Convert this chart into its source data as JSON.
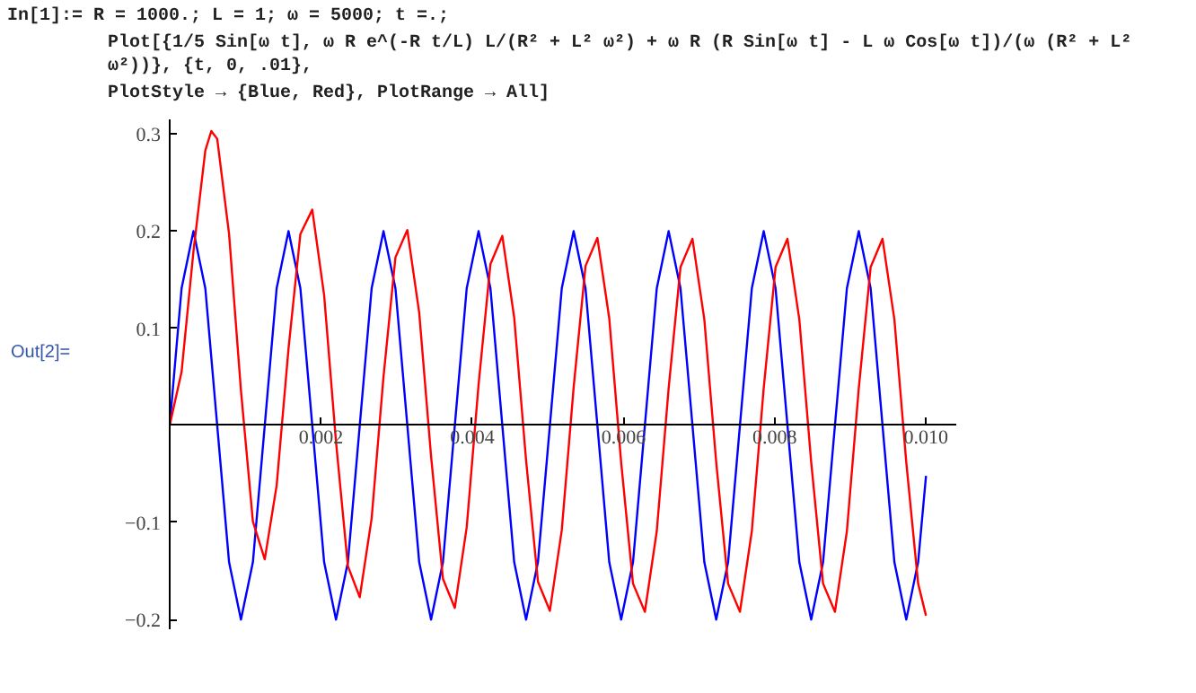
{
  "chart_data": {
    "type": "line",
    "annotations": [
      "In[1]:=  R = 1000.; L = 1; ω = 5000; t =.;",
      "Plot[{1/5 Sin[ω t], ω R e^(-R t/L) L/(R² + L² ω²) + ω R (R Sin[ω t] - L ω Cos[ω t])/(ω (R² + L² ω²))}, {t, 0, .01},",
      "PlotStyle → {Blue, Red}, PlotRange → All]",
      "Out[2]="
    ],
    "series": [
      {
        "color": "#0000ff",
        "x": [
          0,
          0.000157,
          0.000314,
          0.000471,
          0.000628,
          0.000785,
          0.000942,
          0.0011,
          0.001257,
          0.001414,
          0.001571,
          0.001728,
          0.001885,
          0.002042,
          0.002199,
          0.002356,
          0.002513,
          0.00267,
          0.002827,
          0.002985,
          0.003142,
          0.003299,
          0.003456,
          0.003613,
          0.00377,
          0.003927,
          0.004084,
          0.004241,
          0.004398,
          0.004555,
          0.004712,
          0.004869,
          0.005027,
          0.005184,
          0.005341,
          0.005498,
          0.005655,
          0.005812,
          0.005969,
          0.006126,
          0.006283,
          0.00644,
          0.006597,
          0.006754,
          0.006912,
          0.007069,
          0.007226,
          0.007383,
          0.00754,
          0.007697,
          0.007854,
          0.008011,
          0.008168,
          0.008325,
          0.008482,
          0.008639,
          0.008796,
          0.008954,
          0.009111,
          0.009268,
          0.009425,
          0.009582,
          0.009739,
          0.009896,
          0.01
        ],
        "values": [
          0,
          0.141,
          0.2,
          0.141,
          0,
          -0.141,
          -0.2,
          -0.141,
          0,
          0.141,
          0.2,
          0.141,
          0,
          -0.141,
          -0.2,
          -0.141,
          0,
          0.141,
          0.2,
          0.141,
          0,
          -0.141,
          -0.2,
          -0.141,
          0,
          0.141,
          0.2,
          0.141,
          0,
          -0.141,
          -0.2,
          -0.141,
          0,
          0.141,
          0.2,
          0.141,
          0,
          -0.141,
          -0.2,
          -0.141,
          0,
          0.141,
          0.2,
          0.141,
          0,
          -0.141,
          -0.2,
          -0.141,
          0,
          0.141,
          0.2,
          0.141,
          0,
          -0.141,
          -0.2,
          -0.141,
          0,
          0.141,
          0.2,
          0.141,
          0,
          -0.141,
          -0.2,
          -0.141,
          -0.052
        ]
      },
      {
        "color": "#ff0000",
        "x": [
          0,
          0.000157,
          0.000314,
          0.000471,
          0.00055,
          0.000628,
          0.000785,
          0.000942,
          0.0011,
          0.001257,
          0.001414,
          0.001571,
          0.001728,
          0.001885,
          0.002042,
          0.002199,
          0.002356,
          0.002513,
          0.00267,
          0.002827,
          0.002985,
          0.003142,
          0.003299,
          0.003456,
          0.003613,
          0.00377,
          0.003927,
          0.004084,
          0.004241,
          0.004398,
          0.004555,
          0.004712,
          0.004869,
          0.005027,
          0.005184,
          0.005341,
          0.005498,
          0.005655,
          0.005812,
          0.005969,
          0.006126,
          0.006283,
          0.00644,
          0.006597,
          0.006754,
          0.006912,
          0.007069,
          0.007226,
          0.007383,
          0.00754,
          0.007697,
          0.007854,
          0.008011,
          0.008168,
          0.008325,
          0.008482,
          0.008639,
          0.008796,
          0.008954,
          0.009111,
          0.009268,
          0.009425,
          0.009582,
          0.009739,
          0.009896,
          0.01
        ],
        "values": [
          0,
          0.055,
          0.179,
          0.283,
          0.303,
          0.295,
          0.197,
          0.036,
          -0.099,
          -0.138,
          -0.062,
          0.079,
          0.197,
          0.222,
          0.134,
          -0.017,
          -0.145,
          -0.177,
          -0.096,
          0.05,
          0.173,
          0.201,
          0.116,
          -0.032,
          -0.158,
          -0.188,
          -0.105,
          0.042,
          0.166,
          0.195,
          0.111,
          -0.036,
          -0.161,
          -0.191,
          -0.108,
          0.039,
          0.164,
          0.193,
          0.11,
          -0.038,
          -0.163,
          -0.192,
          -0.109,
          0.038,
          0.163,
          0.192,
          0.109,
          -0.038,
          -0.163,
          -0.192,
          -0.109,
          0.038,
          0.163,
          0.192,
          0.109,
          -0.038,
          -0.163,
          -0.192,
          -0.109,
          0.038,
          0.163,
          0.192,
          0.109,
          -0.038,
          -0.163,
          -0.196
        ]
      }
    ],
    "xlim": [
      0,
      0.0104
    ],
    "ylim": [
      -0.21,
      0.315
    ],
    "xticks": [
      0.002,
      0.004,
      0.006,
      0.008,
      {
        "value": 0.01,
        "label": "0.010"
      }
    ],
    "yticks": [
      {
        "value": -0.2,
        "label": "−0.2"
      },
      {
        "value": -0.1,
        "label": "−0.1"
      },
      0.1,
      0.2,
      0.3
    ],
    "grid": false,
    "marker": "none",
    "line_style": "solid"
  }
}
